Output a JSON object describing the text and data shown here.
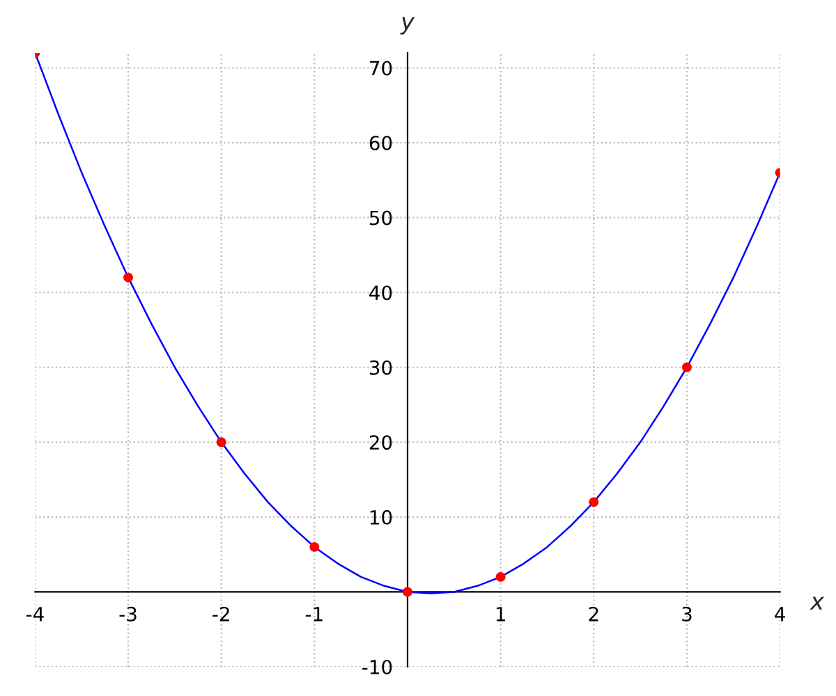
{
  "chart_data": {
    "type": "line",
    "xlabel": "x",
    "ylabel": "y",
    "xlim": [
      -4,
      4
    ],
    "ylim": [
      -10,
      72
    ],
    "xticks": [
      -4,
      -3,
      -2,
      -1,
      1,
      2,
      3,
      4
    ],
    "yticks": [
      -10,
      10,
      20,
      30,
      40,
      50,
      60,
      70
    ],
    "grid": true,
    "series": [
      {
        "color": "#0000ff",
        "marker": "none",
        "line_style": "solid",
        "x": [
          -4,
          -3.75,
          -3.5,
          -3.25,
          -3,
          -2.75,
          -2.5,
          -2.25,
          -2,
          -1.75,
          -1.5,
          -1.25,
          -1,
          -0.75,
          -0.5,
          -0.25,
          0,
          0.25,
          0.5,
          0.75,
          1,
          1.25,
          1.5,
          1.75,
          2,
          2.25,
          2.5,
          2.75,
          3,
          3.25,
          3.5,
          3.75,
          4
        ],
        "values": [
          72,
          63.8,
          56,
          48.8,
          42,
          35.8,
          30,
          24.8,
          20,
          15.8,
          12,
          8.8,
          6,
          3.8,
          2,
          0.8,
          0,
          -0.2,
          0,
          0.8,
          2,
          3.8,
          6,
          8.8,
          12,
          15.8,
          20,
          24.8,
          30,
          35.8,
          42,
          48.8,
          56
        ]
      },
      {
        "type": "scatter",
        "color": "#ff0000",
        "marker": "circle",
        "x": [
          -4,
          -3,
          -2,
          -1,
          0,
          1,
          2,
          3,
          4
        ],
        "values": [
          72,
          42,
          20,
          6,
          0,
          2,
          12,
          30,
          56
        ]
      }
    ]
  }
}
